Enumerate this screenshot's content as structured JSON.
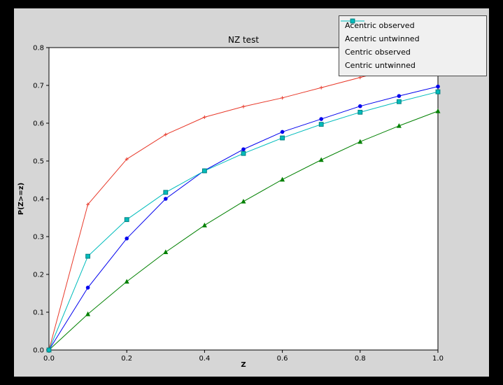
{
  "figure": {
    "frame_color": "#000000",
    "background": "#d6d6d6",
    "plot_background": "#ffffff",
    "axis_color": "#000000"
  },
  "chart_data": {
    "type": "line",
    "title": "NZ test",
    "xlabel": "Z",
    "ylabel": "P(Z>=z)",
    "xlim": [
      0.0,
      1.0
    ],
    "ylim": [
      0.0,
      0.8
    ],
    "xticks": [
      0.0,
      0.2,
      0.4,
      0.6,
      0.8,
      1.0
    ],
    "yticks": [
      0.0,
      0.1,
      0.2,
      0.3,
      0.4,
      0.5,
      0.6,
      0.7,
      0.8
    ],
    "grid": false,
    "legend_position": "upper right",
    "x": [
      0.0,
      0.1,
      0.2,
      0.3,
      0.4,
      0.5,
      0.6,
      0.7,
      0.8,
      0.9,
      1.0
    ],
    "series": [
      {
        "name": "Acentric observed",
        "color": "#0000ee",
        "marker": "circle",
        "values": [
          0.0,
          0.165,
          0.295,
          0.4,
          0.475,
          0.531,
          0.577,
          0.611,
          0.645,
          0.672,
          0.697
        ]
      },
      {
        "name": "Acentric untwinned",
        "color": "#008000",
        "marker": "triangle",
        "values": [
          0.0,
          0.095,
          0.181,
          0.259,
          0.33,
          0.393,
          0.451,
          0.503,
          0.551,
          0.593,
          0.632
        ]
      },
      {
        "name": "Centric observed",
        "color": "#e8392a",
        "marker": "plus",
        "values": [
          0.0,
          0.385,
          0.505,
          0.57,
          0.616,
          0.644,
          0.667,
          0.694,
          0.721,
          0.746,
          0.767
        ]
      },
      {
        "name": "Centric untwinned",
        "color": "#00bcbc",
        "marker": "square",
        "marker_edge": "#007f7f",
        "values": [
          0.0,
          0.248,
          0.345,
          0.417,
          0.474,
          0.52,
          0.561,
          0.597,
          0.629,
          0.657,
          0.683
        ]
      }
    ]
  }
}
